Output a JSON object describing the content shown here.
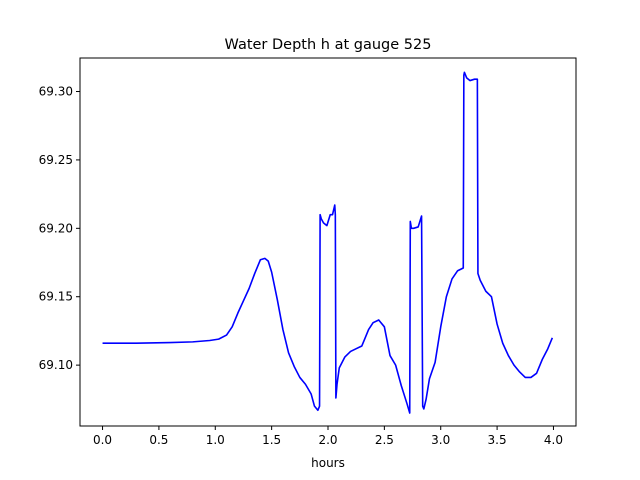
{
  "chart_data": {
    "type": "line",
    "title": "Water Depth h at gauge 525",
    "xlabel": "hours",
    "ylabel": "",
    "xlim": [
      -0.2,
      4.2
    ],
    "ylim": [
      69.0555,
      69.3245
    ],
    "grid": false,
    "legend": "none",
    "x_ticks": [
      0.0,
      0.5,
      1.0,
      1.5,
      2.0,
      2.5,
      3.0,
      3.5,
      4.0
    ],
    "x_tick_labels": [
      "0.0",
      "0.5",
      "1.0",
      "1.5",
      "2.0",
      "2.5",
      "3.0",
      "3.5",
      "4.0"
    ],
    "y_ticks": [
      69.1,
      69.15,
      69.2,
      69.25,
      69.3
    ],
    "y_tick_labels": [
      "69.10",
      "69.15",
      "69.20",
      "69.25",
      "69.30"
    ],
    "series": [
      {
        "color": "#0000ff",
        "x": [
          0.0,
          0.3,
          0.6,
          0.8,
          0.95,
          1.03,
          1.1,
          1.15,
          1.2,
          1.25,
          1.3,
          1.35,
          1.4,
          1.44,
          1.47,
          1.5,
          1.55,
          1.6,
          1.65,
          1.7,
          1.75,
          1.8,
          1.85,
          1.88,
          1.91,
          1.925,
          1.93,
          1.94,
          1.96,
          1.99,
          2.02,
          2.04,
          2.06,
          2.065,
          2.07,
          2.08,
          2.1,
          2.15,
          2.2,
          2.25,
          2.3,
          2.33,
          2.36,
          2.4,
          2.45,
          2.5,
          2.55,
          2.6,
          2.65,
          2.7,
          2.725,
          2.73,
          2.74,
          2.76,
          2.8,
          2.83,
          2.84,
          2.85,
          2.87,
          2.9,
          2.95,
          3.0,
          3.05,
          3.1,
          3.15,
          3.2,
          3.205,
          3.21,
          3.23,
          3.26,
          3.3,
          3.325,
          3.33,
          3.35,
          3.4,
          3.45,
          3.5,
          3.55,
          3.6,
          3.65,
          3.7,
          3.75,
          3.8,
          3.85,
          3.9,
          3.95,
          3.99
        ],
        "y": [
          69.116,
          69.116,
          69.1165,
          69.117,
          69.118,
          69.119,
          69.122,
          69.128,
          69.138,
          69.147,
          69.156,
          69.167,
          69.177,
          69.178,
          69.176,
          69.168,
          69.148,
          69.126,
          69.109,
          69.099,
          69.091,
          69.086,
          69.079,
          69.07,
          69.067,
          69.07,
          69.21,
          69.207,
          69.204,
          69.202,
          69.21,
          69.21,
          69.217,
          69.21,
          69.076,
          69.086,
          69.098,
          69.106,
          69.11,
          69.112,
          69.114,
          69.12,
          69.126,
          69.131,
          69.133,
          69.128,
          69.107,
          69.1,
          69.085,
          69.072,
          69.065,
          69.205,
          69.2,
          69.2,
          69.201,
          69.209,
          69.07,
          69.068,
          69.075,
          69.09,
          69.102,
          69.128,
          69.15,
          69.163,
          69.169,
          69.171,
          69.312,
          69.314,
          69.31,
          69.308,
          69.309,
          69.309,
          69.167,
          69.162,
          69.154,
          69.15,
          69.13,
          69.116,
          69.107,
          69.1,
          69.095,
          69.091,
          69.091,
          69.094,
          69.104,
          69.112,
          69.12
        ]
      }
    ]
  }
}
